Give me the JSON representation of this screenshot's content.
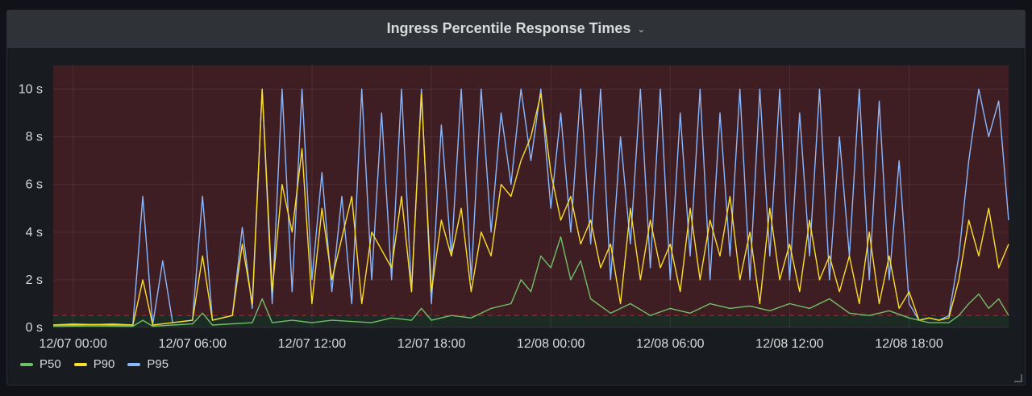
{
  "panel": {
    "title": "Ingress Percentile Response Times",
    "menu_icon": "chevron-down-icon"
  },
  "chart_data": {
    "type": "line",
    "xlim": [
      "12/07 00:00",
      "12/09 00:00"
    ],
    "x_ticks": [
      "12/07 00:00",
      "12/07 06:00",
      "12/07 12:00",
      "12/07 18:00",
      "12/08 00:00",
      "12/08 06:00",
      "12/08 12:00",
      "12/08 18:00"
    ],
    "ylim": [
      0,
      11
    ],
    "y_ticks": [
      "0 s",
      "2 s",
      "4 s",
      "6 s",
      "8 s",
      "10 s"
    ],
    "threshold": {
      "value": 0.5,
      "color": "#c4162a"
    },
    "grid": true,
    "legend": "bottom-left",
    "series": [
      {
        "name": "P50",
        "color": "#73bf69",
        "points": [
          [
            0,
            0.05
          ],
          [
            2,
            0.06
          ],
          [
            4,
            0.05
          ],
          [
            4.5,
            0.3
          ],
          [
            5,
            0.05
          ],
          [
            6,
            0.1
          ],
          [
            7,
            0.15
          ],
          [
            7.5,
            0.6
          ],
          [
            8,
            0.1
          ],
          [
            10,
            0.2
          ],
          [
            10.5,
            1.2
          ],
          [
            11,
            0.2
          ],
          [
            12,
            0.3
          ],
          [
            13,
            0.2
          ],
          [
            14,
            0.3
          ],
          [
            16,
            0.2
          ],
          [
            17,
            0.4
          ],
          [
            18,
            0.3
          ],
          [
            18.5,
            0.8
          ],
          [
            19,
            0.3
          ],
          [
            20,
            0.5
          ],
          [
            21,
            0.4
          ],
          [
            22,
            0.8
          ],
          [
            23,
            1.0
          ],
          [
            23.5,
            2.0
          ],
          [
            24,
            1.5
          ],
          [
            24.5,
            3.0
          ],
          [
            25,
            2.5
          ],
          [
            25.5,
            3.8
          ],
          [
            26,
            2.0
          ],
          [
            26.5,
            2.8
          ],
          [
            27,
            1.2
          ],
          [
            28,
            0.6
          ],
          [
            29,
            1.0
          ],
          [
            30,
            0.5
          ],
          [
            31,
            0.8
          ],
          [
            32,
            0.6
          ],
          [
            33,
            1.0
          ],
          [
            34,
            0.8
          ],
          [
            35,
            0.9
          ],
          [
            36,
            0.7
          ],
          [
            37,
            1.0
          ],
          [
            38,
            0.8
          ],
          [
            39,
            1.2
          ],
          [
            40,
            0.6
          ],
          [
            41,
            0.5
          ],
          [
            42,
            0.7
          ],
          [
            43,
            0.4
          ],
          [
            44,
            0.2
          ],
          [
            45,
            0.2
          ],
          [
            45.5,
            0.5
          ],
          [
            46,
            1.0
          ],
          [
            46.5,
            1.4
          ],
          [
            47,
            0.8
          ],
          [
            47.5,
            1.2
          ],
          [
            48,
            0.5
          ]
        ]
      },
      {
        "name": "P90",
        "color": "#fade2a",
        "points": [
          [
            0,
            0.1
          ],
          [
            2,
            0.12
          ],
          [
            4,
            0.1
          ],
          [
            4.5,
            2.0
          ],
          [
            5,
            0.1
          ],
          [
            6,
            0.2
          ],
          [
            7,
            0.3
          ],
          [
            7.5,
            3.0
          ],
          [
            8,
            0.3
          ],
          [
            9,
            0.5
          ],
          [
            9.5,
            3.5
          ],
          [
            10,
            1.0
          ],
          [
            10.5,
            10.0
          ],
          [
            11,
            1.5
          ],
          [
            11.5,
            6.0
          ],
          [
            12,
            4.0
          ],
          [
            12.5,
            7.5
          ],
          [
            13,
            1.0
          ],
          [
            13.5,
            5.0
          ],
          [
            14,
            2.0
          ],
          [
            15,
            5.5
          ],
          [
            15.5,
            1.0
          ],
          [
            16,
            4.0
          ],
          [
            17,
            2.5
          ],
          [
            17.5,
            5.5
          ],
          [
            18,
            1.5
          ],
          [
            18.5,
            9.8
          ],
          [
            19,
            1.5
          ],
          [
            19.5,
            4.5
          ],
          [
            20,
            3.0
          ],
          [
            20.5,
            5.0
          ],
          [
            21,
            1.5
          ],
          [
            21.5,
            4.0
          ],
          [
            22,
            3.0
          ],
          [
            22.5,
            6.0
          ],
          [
            23,
            5.5
          ],
          [
            23.5,
            7.0
          ],
          [
            24,
            8.0
          ],
          [
            24.5,
            9.8
          ],
          [
            25,
            6.5
          ],
          [
            25.5,
            4.5
          ],
          [
            26,
            5.5
          ],
          [
            26.5,
            3.5
          ],
          [
            27,
            4.5
          ],
          [
            27.5,
            2.5
          ],
          [
            28,
            3.5
          ],
          [
            28.5,
            1.0
          ],
          [
            29,
            5.0
          ],
          [
            29.5,
            2.0
          ],
          [
            30,
            4.5
          ],
          [
            30.5,
            2.5
          ],
          [
            31,
            3.5
          ],
          [
            31.5,
            1.5
          ],
          [
            32,
            5.0
          ],
          [
            32.5,
            2.0
          ],
          [
            33,
            4.5
          ],
          [
            33.5,
            3.0
          ],
          [
            34,
            5.5
          ],
          [
            34.5,
            2.0
          ],
          [
            35,
            4.0
          ],
          [
            35.5,
            1.0
          ],
          [
            36,
            5.0
          ],
          [
            36.5,
            2.0
          ],
          [
            37,
            3.5
          ],
          [
            37.5,
            1.5
          ],
          [
            38,
            4.5
          ],
          [
            38.5,
            2.0
          ],
          [
            39,
            3.0
          ],
          [
            39.5,
            1.5
          ],
          [
            40,
            3.0
          ],
          [
            40.5,
            1.0
          ],
          [
            41,
            4.0
          ],
          [
            41.5,
            1.0
          ],
          [
            42,
            3.0
          ],
          [
            42.5,
            0.8
          ],
          [
            43,
            1.5
          ],
          [
            43.5,
            0.3
          ],
          [
            44,
            0.4
          ],
          [
            44.5,
            0.3
          ],
          [
            45,
            0.4
          ],
          [
            45.5,
            2.0
          ],
          [
            46,
            4.5
          ],
          [
            46.5,
            3.0
          ],
          [
            47,
            5.0
          ],
          [
            47.5,
            2.5
          ],
          [
            48,
            3.5
          ]
        ]
      },
      {
        "name": "P95",
        "color": "#8ab8ff",
        "points": [
          [
            0,
            0.1
          ],
          [
            1,
            0.15
          ],
          [
            2,
            0.12
          ],
          [
            3,
            0.15
          ],
          [
            4,
            0.1
          ],
          [
            4.5,
            5.5
          ],
          [
            5,
            0.1
          ],
          [
            5.5,
            2.8
          ],
          [
            6,
            0.2
          ],
          [
            7,
            0.3
          ],
          [
            7.5,
            5.5
          ],
          [
            8,
            0.3
          ],
          [
            9,
            0.5
          ],
          [
            9.5,
            4.2
          ],
          [
            10,
            0.8
          ],
          [
            10.5,
            10.0
          ],
          [
            11,
            1.0
          ],
          [
            11.5,
            10.0
          ],
          [
            12,
            1.5
          ],
          [
            12.5,
            10.0
          ],
          [
            13,
            2.0
          ],
          [
            13.5,
            6.5
          ],
          [
            14,
            1.5
          ],
          [
            14.5,
            5.5
          ],
          [
            15,
            1.0
          ],
          [
            15.5,
            10.0
          ],
          [
            16,
            2.0
          ],
          [
            16.5,
            9.0
          ],
          [
            17,
            2.0
          ],
          [
            17.5,
            10.0
          ],
          [
            18,
            1.5
          ],
          [
            18.5,
            10.0
          ],
          [
            19,
            1.0
          ],
          [
            19.5,
            8.5
          ],
          [
            20,
            3.0
          ],
          [
            20.5,
            10.0
          ],
          [
            21,
            2.0
          ],
          [
            21.5,
            10.0
          ],
          [
            22,
            4.0
          ],
          [
            22.5,
            9.0
          ],
          [
            23,
            6.0
          ],
          [
            23.5,
            10.0
          ],
          [
            24,
            7.0
          ],
          [
            24.5,
            10.0
          ],
          [
            25,
            5.0
          ],
          [
            25.5,
            9.0
          ],
          [
            26,
            4.0
          ],
          [
            26.5,
            10.0
          ],
          [
            27,
            3.5
          ],
          [
            27.5,
            10.0
          ],
          [
            28,
            2.0
          ],
          [
            28.5,
            8.0
          ],
          [
            29,
            3.5
          ],
          [
            29.5,
            10.0
          ],
          [
            30,
            2.5
          ],
          [
            30.5,
            10.0
          ],
          [
            31,
            2.0
          ],
          [
            31.5,
            9.0
          ],
          [
            32,
            3.0
          ],
          [
            32.5,
            10.0
          ],
          [
            33,
            2.0
          ],
          [
            33.5,
            9.0
          ],
          [
            34,
            3.0
          ],
          [
            34.5,
            10.0
          ],
          [
            35,
            2.0
          ],
          [
            35.5,
            10.0
          ],
          [
            36,
            3.0
          ],
          [
            36.5,
            10.0
          ],
          [
            37,
            2.0
          ],
          [
            37.5,
            9.0
          ],
          [
            38,
            3.0
          ],
          [
            38.5,
            10.0
          ],
          [
            39,
            2.0
          ],
          [
            39.5,
            8.0
          ],
          [
            40,
            3.0
          ],
          [
            40.5,
            10.0
          ],
          [
            41,
            2.0
          ],
          [
            41.5,
            9.5
          ],
          [
            42,
            2.0
          ],
          [
            42.5,
            7.0
          ],
          [
            43,
            1.0
          ],
          [
            43.5,
            0.3
          ],
          [
            44,
            0.4
          ],
          [
            44.5,
            0.3
          ],
          [
            45,
            0.5
          ],
          [
            45.5,
            3.0
          ],
          [
            46,
            7.0
          ],
          [
            46.5,
            10.0
          ],
          [
            47,
            8.0
          ],
          [
            47.5,
            9.5
          ],
          [
            48,
            4.5
          ]
        ]
      }
    ]
  }
}
